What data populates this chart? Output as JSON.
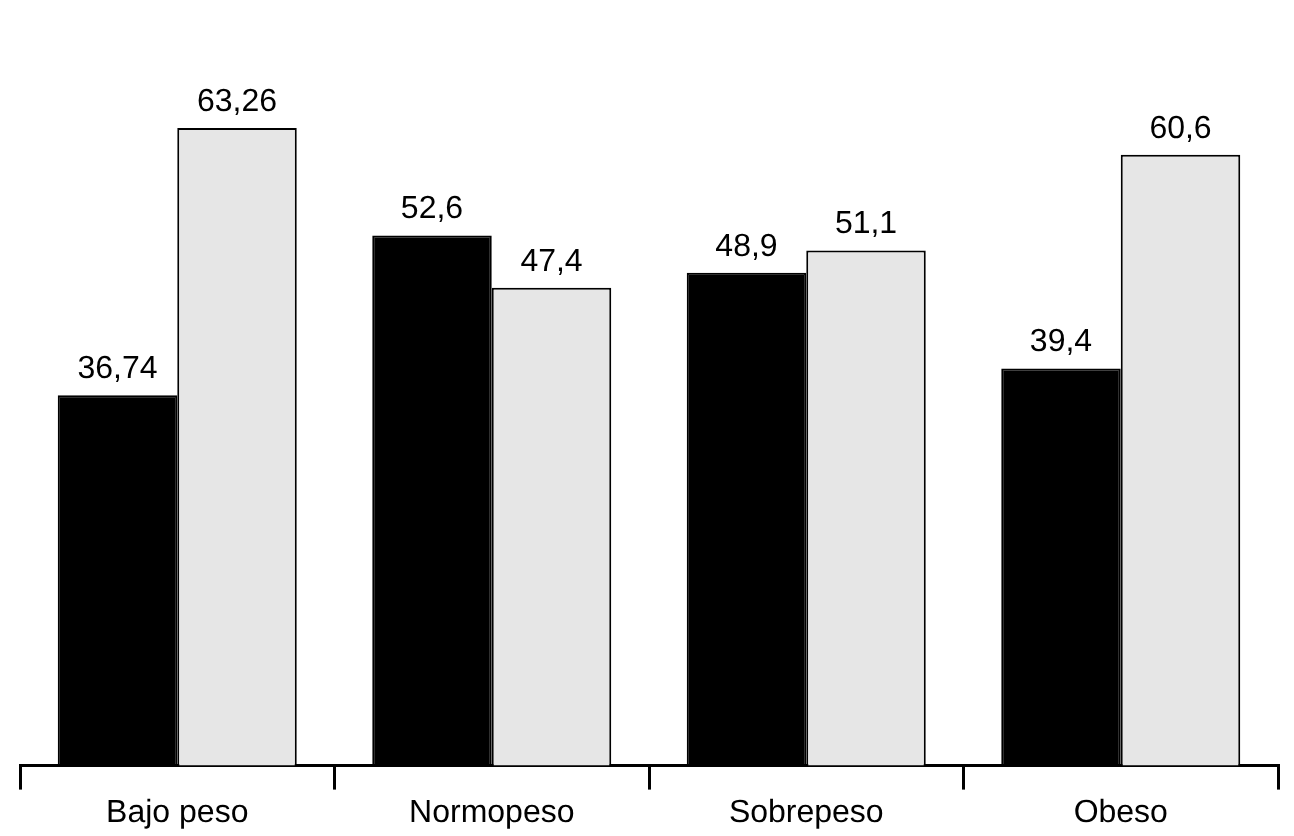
{
  "chart_data": {
    "type": "bar",
    "categories": [
      "Bajo peso",
      "Normopeso",
      "Sobrepeso",
      "Obeso"
    ],
    "series": [
      {
        "color": "#000000",
        "values": [
          36.74,
          52.6,
          48.9,
          39.4
        ],
        "value_labels": [
          "36,74",
          "52,6",
          "48,9",
          "39,4"
        ]
      },
      {
        "color": "#e6e6e6",
        "values": [
          63.26,
          47.4,
          51.1,
          60.6
        ],
        "value_labels": [
          "63,26",
          "47,4",
          "51,1",
          "60,6"
        ]
      }
    ],
    "legend": false,
    "grid": false
  }
}
